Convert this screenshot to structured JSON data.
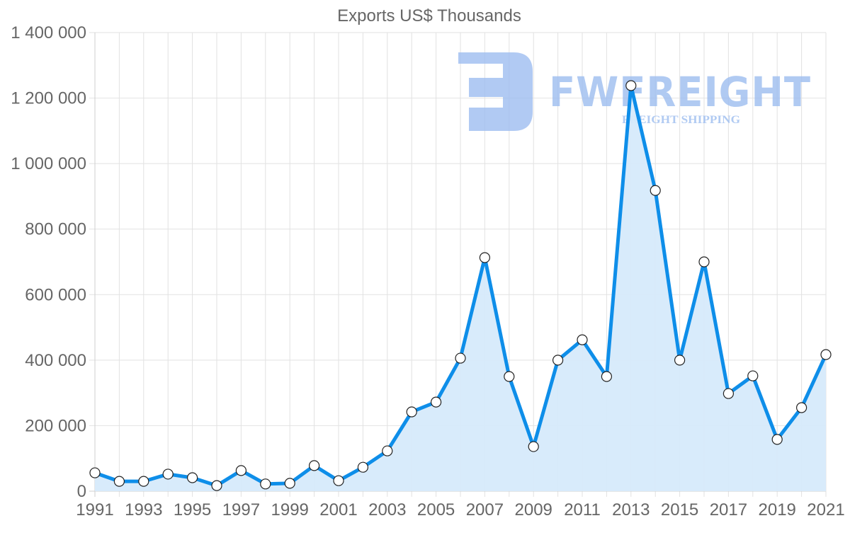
{
  "chart_data": {
    "type": "area",
    "title": "Exports US$ Thousands",
    "xlabel": "",
    "ylabel": "",
    "ylim": [
      0,
      1400000
    ],
    "grid": true,
    "legend": null,
    "y_ticks": [
      "0",
      "200 000",
      "400 000",
      "600 000",
      "800 000",
      "1 000 000",
      "1 200 000",
      "1 400 000"
    ],
    "x_tick_labels": [
      "1991",
      "1993",
      "1995",
      "1997",
      "1999",
      "2001",
      "2003",
      "2005",
      "2007",
      "2009",
      "2011",
      "2013",
      "2015",
      "2017",
      "2019",
      "2021"
    ],
    "categories": [
      "1991",
      "1992",
      "1993",
      "1994",
      "1995",
      "1996",
      "1997",
      "1998",
      "1999",
      "2000",
      "2001",
      "2002",
      "2003",
      "2004",
      "2005",
      "2006",
      "2007",
      "2008",
      "2009",
      "2010",
      "2011",
      "2012",
      "2013",
      "2014",
      "2015",
      "2016",
      "2017",
      "2018",
      "2019",
      "2020",
      "2021"
    ],
    "series": [
      {
        "name": "Exports US$ Thousands",
        "color": "#0e8ee9",
        "fill": "#d6eafb",
        "values": [
          56000,
          30000,
          30000,
          52000,
          41000,
          17000,
          63000,
          22000,
          24000,
          78000,
          32000,
          73000,
          123000,
          242000,
          272000,
          406000,
          713000,
          350000,
          136000,
          400000,
          462000,
          350000,
          1238000,
          918000,
          400000,
          700000,
          298000,
          352000,
          158000,
          255000,
          417000
        ]
      }
    ]
  },
  "watermark": {
    "brand": "FWFREIGHT",
    "tagline": "FREIGHT SHIPPING",
    "color": "#9dbdf0"
  }
}
